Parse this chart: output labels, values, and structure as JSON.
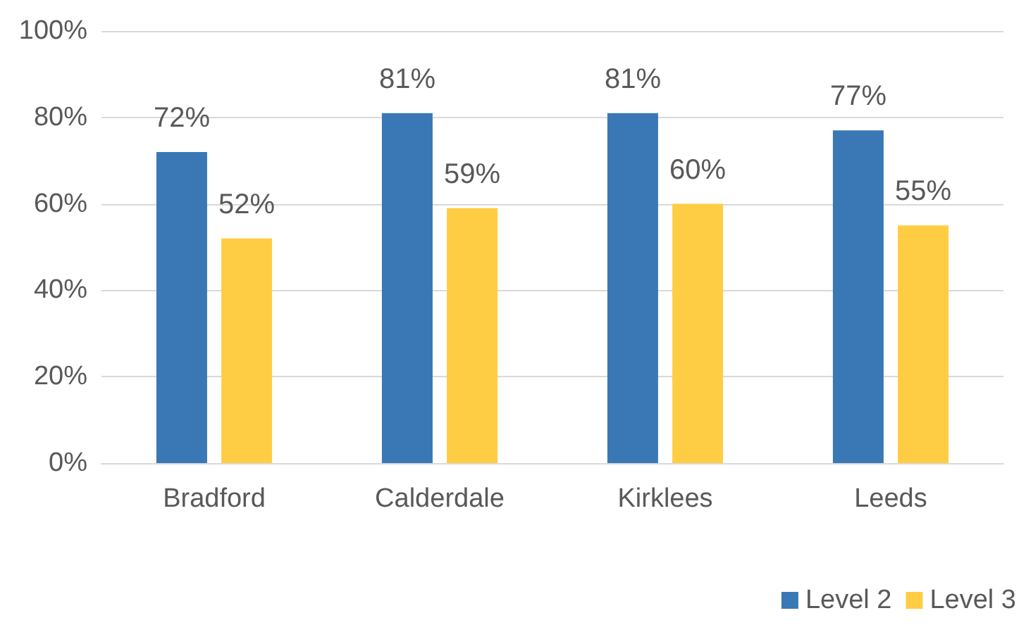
{
  "chart_data": {
    "type": "bar",
    "categories": [
      "Bradford",
      "Calderdale",
      "Kirklees",
      "Leeds"
    ],
    "series": [
      {
        "name": "Level 2",
        "color": "#3a78b5",
        "values": [
          72,
          81,
          81,
          77
        ],
        "value_labels": [
          "72%",
          "81%",
          "81%",
          "77%"
        ]
      },
      {
        "name": "Level 3",
        "color": "#ffcd44",
        "values": [
          52,
          59,
          60,
          55
        ],
        "value_labels": [
          "52%",
          "59%",
          "60%",
          "55%"
        ]
      }
    ],
    "ylim": [
      0,
      100
    ],
    "yticks": [
      {
        "value": 0,
        "label": "0%"
      },
      {
        "value": 20,
        "label": "20%"
      },
      {
        "value": 40,
        "label": "40%"
      },
      {
        "value": 60,
        "label": "60%"
      },
      {
        "value": 80,
        "label": "80%"
      },
      {
        "value": 100,
        "label": "100%"
      }
    ],
    "grid": "y",
    "legend": "bottom right"
  }
}
